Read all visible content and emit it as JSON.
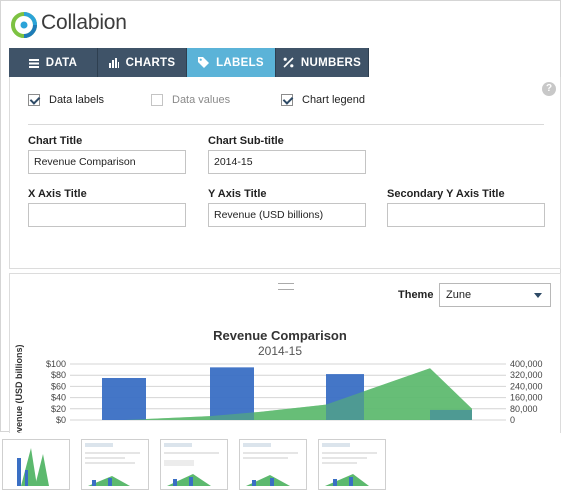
{
  "app": {
    "name": "Collabion"
  },
  "tabs": [
    {
      "label": "DATA",
      "icon": "list-icon",
      "active": false
    },
    {
      "label": "CHARTS",
      "icon": "bar-chart-icon",
      "active": false
    },
    {
      "label": "LABELS",
      "icon": "tag-icon",
      "active": true
    },
    {
      "label": "NUMBERS",
      "icon": "percent-icon",
      "active": false
    }
  ],
  "options": {
    "data_labels": {
      "label": "Data labels",
      "checked": true
    },
    "data_values": {
      "label": "Data values",
      "checked": false
    },
    "chart_legend": {
      "label": "Chart legend",
      "checked": true
    }
  },
  "fields": {
    "chart_title": {
      "label": "Chart Title",
      "value": "Revenue  Comparison"
    },
    "chart_subtitle": {
      "label": "Chart Sub-title",
      "value": "2014-15"
    },
    "x_axis_title": {
      "label": "X Axis Title",
      "value": ""
    },
    "y_axis_title": {
      "label": "Y Axis Title",
      "value": "Revenue (USD billions)"
    },
    "secondary_y_axis_title": {
      "label": "Secondary Y Axis Title",
      "value": ""
    }
  },
  "theme": {
    "label": "Theme",
    "value": "Zune"
  },
  "colors": {
    "tab_bg": "#3f5368",
    "tab_active": "#5bb3d8",
    "bar": "#3a6fc4",
    "area": "#5cb96e"
  },
  "chart_data": {
    "type": "bar",
    "title": "Revenue Comparison",
    "subtitle": "2014-15",
    "ylabel": "Revenue (USD billions)",
    "yticks": [
      "$100",
      "$80",
      "$60",
      "$40",
      "$20",
      "$0"
    ],
    "y2ticks": [
      "400,000",
      "320,000",
      "240,000",
      "160,000",
      "80,000",
      "0"
    ],
    "ylim": [
      0,
      100
    ],
    "y2lim": [
      0,
      400000
    ],
    "series": [
      {
        "name": "",
        "type": "bar",
        "values": [
          75,
          94,
          82,
          18
        ]
      },
      {
        "name": "",
        "type": "area",
        "values": [
          28000,
          58000,
          110000,
          370000,
          80000
        ]
      }
    ]
  }
}
